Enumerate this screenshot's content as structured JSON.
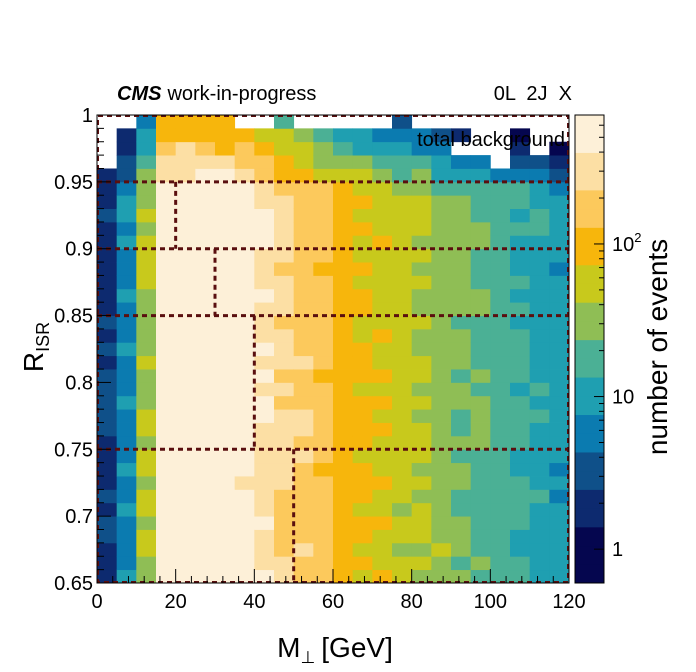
{
  "header": {
    "experiment": "CMS",
    "status": "work-in-progress",
    "region_tags": "0L  2J  X",
    "sample": "total background"
  },
  "chart_data": {
    "type": "heatmap",
    "title": "",
    "xlabel": "M⊥ [GeV]",
    "xlabel_main": "M",
    "xlabel_sym": "⊥",
    "xlabel_unit": "[GeV]",
    "ylabel": "R_ISR",
    "ylabel_main": "R",
    "ylabel_sub": "ISR",
    "zlabel": "number of events",
    "xlim": [
      0,
      120
    ],
    "ylim": [
      0.65,
      1.0
    ],
    "zscale": "log",
    "zlim": [
      0.6,
      700
    ],
    "x_ticks": [
      "0",
      "20",
      "40",
      "60",
      "80",
      "100",
      "120"
    ],
    "y_ticks": [
      "0.65",
      "0.7",
      "0.75",
      "0.8",
      "0.85",
      "0.9",
      "0.95",
      "1"
    ],
    "z_ticks": [
      {
        "label": "1",
        "value": 1
      },
      {
        "label": "10",
        "value": 10
      },
      {
        "label": "10",
        "sup": "2",
        "value": 100
      }
    ],
    "nbins_x": 24,
    "nbins_y": 35,
    "palette": [
      "#05064f",
      "#0d2a6f",
      "#0f5089",
      "#0b7bb0",
      "#1f9fb1",
      "#4bb095",
      "#8fbe55",
      "#c8c91c",
      "#f7b60c",
      "#fcc95c",
      "#fcdfa4",
      "#fdf0d8"
    ],
    "region_boundaries_x": [
      20,
      30,
      40,
      50
    ],
    "region_boundaries_y": [
      0.75,
      0.85,
      0.9,
      0.95
    ],
    "region_line_color": "#5a0f0f"
  }
}
